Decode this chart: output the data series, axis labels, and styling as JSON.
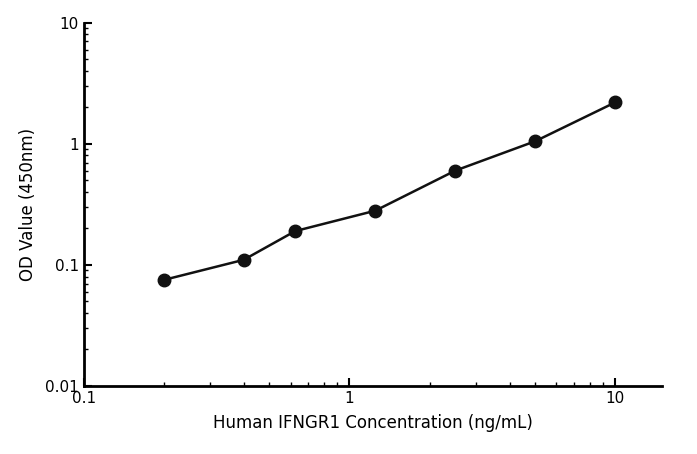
{
  "x": [
    0.2,
    0.4,
    0.625,
    1.25,
    2.5,
    5.0,
    10.0
  ],
  "y": [
    0.075,
    0.11,
    0.19,
    0.28,
    0.6,
    1.05,
    2.2
  ],
  "xlim": [
    0.1,
    15
  ],
  "ylim": [
    0.01,
    10
  ],
  "xlabel": "Human IFNGR1 Concentration (ng/mL)",
  "ylabel": "OD Value (450nm)",
  "line_color": "#111111",
  "marker_color": "#111111",
  "marker_size": 9,
  "linewidth": 1.8,
  "bg_color": "#ffffff",
  "xticks": [
    0.1,
    1,
    10
  ],
  "yticks": [
    0.01,
    0.1,
    1,
    10
  ],
  "spine_linewidth": 2.0
}
